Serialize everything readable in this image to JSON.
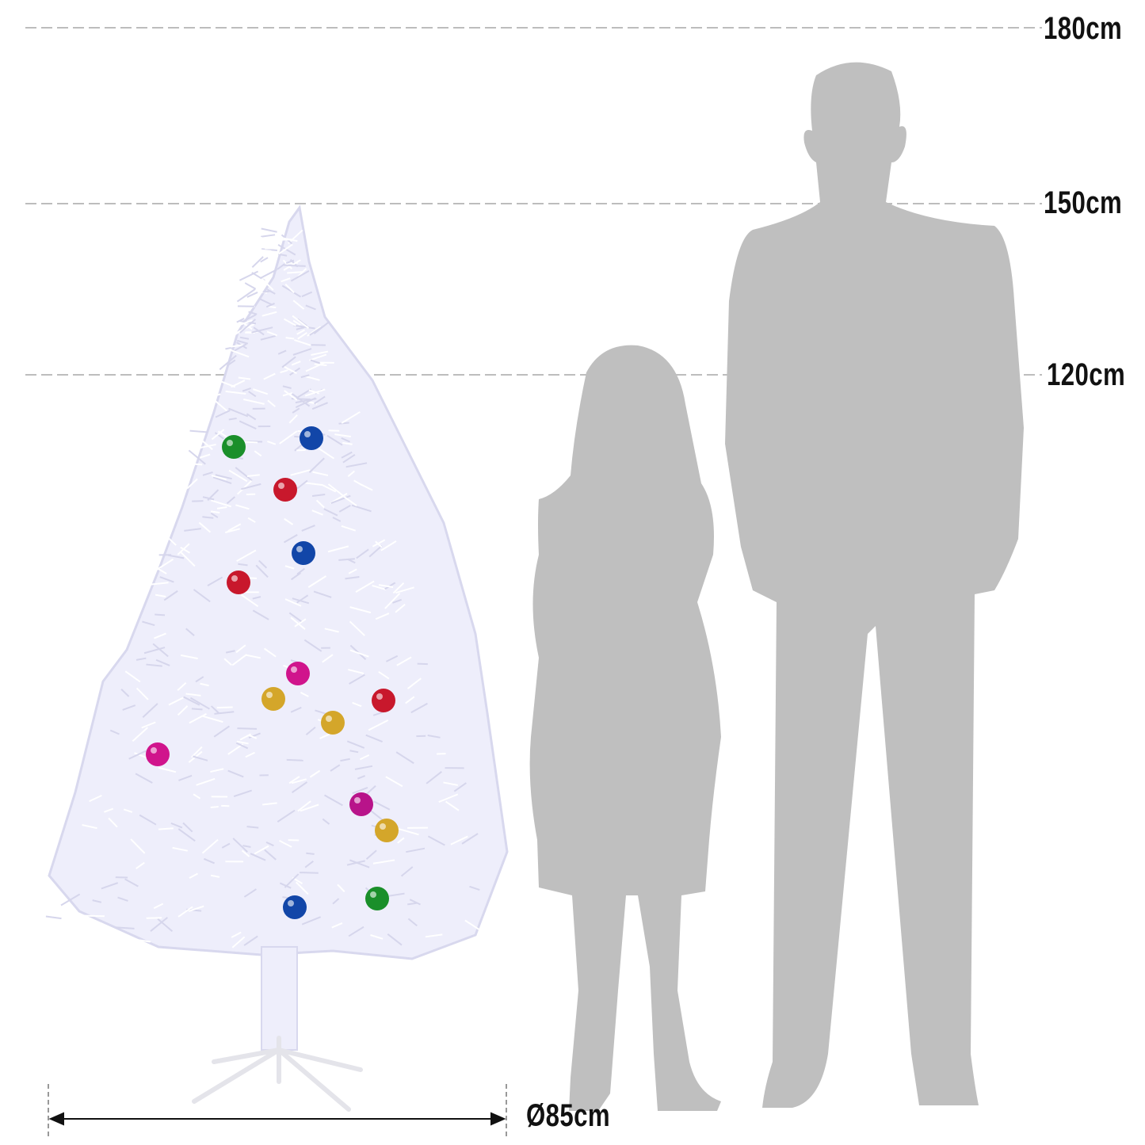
{
  "height_markers": [
    {
      "label": "180cm",
      "value_cm": 180
    },
    {
      "label": "150cm",
      "value_cm": 150
    },
    {
      "label": "120cm",
      "value_cm": 120
    }
  ],
  "diameter": {
    "label": "Ø85cm",
    "value_cm": 85
  },
  "colors": {
    "silhouette": "#bfbfbf",
    "guide_line": "#bdbdbd",
    "tree": "#eeeefb",
    "ornaments": [
      "#1a8f2a",
      "#1246a8",
      "#c8182c",
      "#d0148c",
      "#d4a62a",
      "#b8148a"
    ]
  }
}
